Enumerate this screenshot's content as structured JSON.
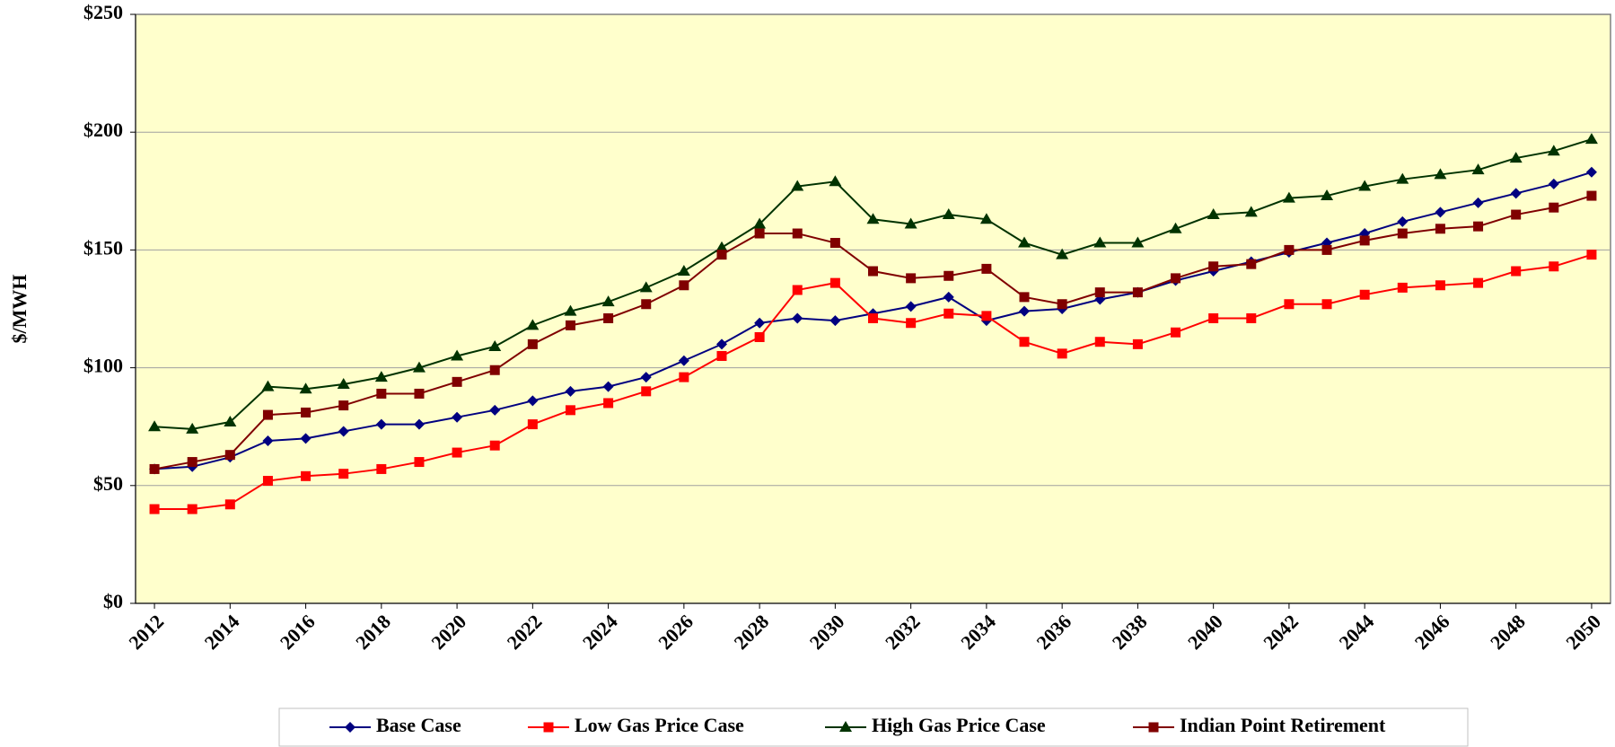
{
  "chart_data": {
    "type": "line",
    "y_label": "$/MWH",
    "x": [
      2012,
      2013,
      2014,
      2015,
      2016,
      2017,
      2018,
      2019,
      2020,
      2021,
      2022,
      2023,
      2024,
      2025,
      2026,
      2027,
      2028,
      2029,
      2030,
      2031,
      2032,
      2033,
      2034,
      2035,
      2036,
      2037,
      2038,
      2039,
      2040,
      2041,
      2042,
      2043,
      2044,
      2045,
      2046,
      2047,
      2048,
      2049,
      2050
    ],
    "xlim": [
      2011.5,
      2050.5
    ],
    "xticks": [
      2012,
      2014,
      2016,
      2018,
      2020,
      2022,
      2024,
      2026,
      2028,
      2030,
      2032,
      2034,
      2036,
      2038,
      2040,
      2042,
      2044,
      2046,
      2048,
      2050
    ],
    "ylim": [
      0,
      250
    ],
    "yticks": [
      {
        "value": 0,
        "label": "$0"
      },
      {
        "value": 50,
        "label": "$50"
      },
      {
        "value": 100,
        "label": "$100"
      },
      {
        "value": 150,
        "label": "$150"
      },
      {
        "value": 200,
        "label": "$200"
      },
      {
        "value": 250,
        "label": "$250"
      }
    ],
    "grid": true,
    "legend": "bottom",
    "series": [
      {
        "name": "Base Case",
        "color": "#000080",
        "marker": "diamond",
        "values": [
          57,
          58,
          62,
          69,
          70,
          73,
          76,
          76,
          79,
          82,
          86,
          90,
          92,
          96,
          103,
          110,
          119,
          121,
          120,
          123,
          126,
          130,
          120,
          124,
          125,
          129,
          132,
          137,
          141,
          145,
          149,
          153,
          157,
          162,
          166,
          170,
          174,
          178,
          183
        ]
      },
      {
        "name": "Low Gas Price Case",
        "color": "#ff0000",
        "marker": "square",
        "values": [
          40,
          40,
          42,
          52,
          54,
          55,
          57,
          60,
          64,
          67,
          76,
          82,
          85,
          90,
          96,
          105,
          113,
          133,
          136,
          121,
          119,
          123,
          122,
          111,
          106,
          111,
          110,
          115,
          121,
          121,
          127,
          127,
          131,
          134,
          135,
          136,
          141,
          143,
          148
        ]
      },
      {
        "name": "High Gas Price Case",
        "color": "#003300",
        "marker": "triangle",
        "values": [
          75,
          74,
          77,
          92,
          91,
          93,
          96,
          100,
          105,
          109,
          118,
          124,
          128,
          134,
          141,
          151,
          161,
          177,
          179,
          163,
          161,
          165,
          163,
          153,
          148,
          153,
          153,
          159,
          165,
          166,
          172,
          173,
          177,
          180,
          182,
          184,
          189,
          192,
          197
        ]
      },
      {
        "name": "Indian Point Retirement",
        "color": "#800000",
        "marker": "square",
        "values": [
          57,
          60,
          63,
          80,
          81,
          84,
          89,
          89,
          94,
          99,
          110,
          118,
          121,
          127,
          135,
          148,
          157,
          157,
          153,
          141,
          138,
          139,
          142,
          130,
          127,
          132,
          132,
          138,
          143,
          144,
          150,
          150,
          154,
          157,
          159,
          160,
          165,
          168,
          173
        ]
      }
    ]
  }
}
